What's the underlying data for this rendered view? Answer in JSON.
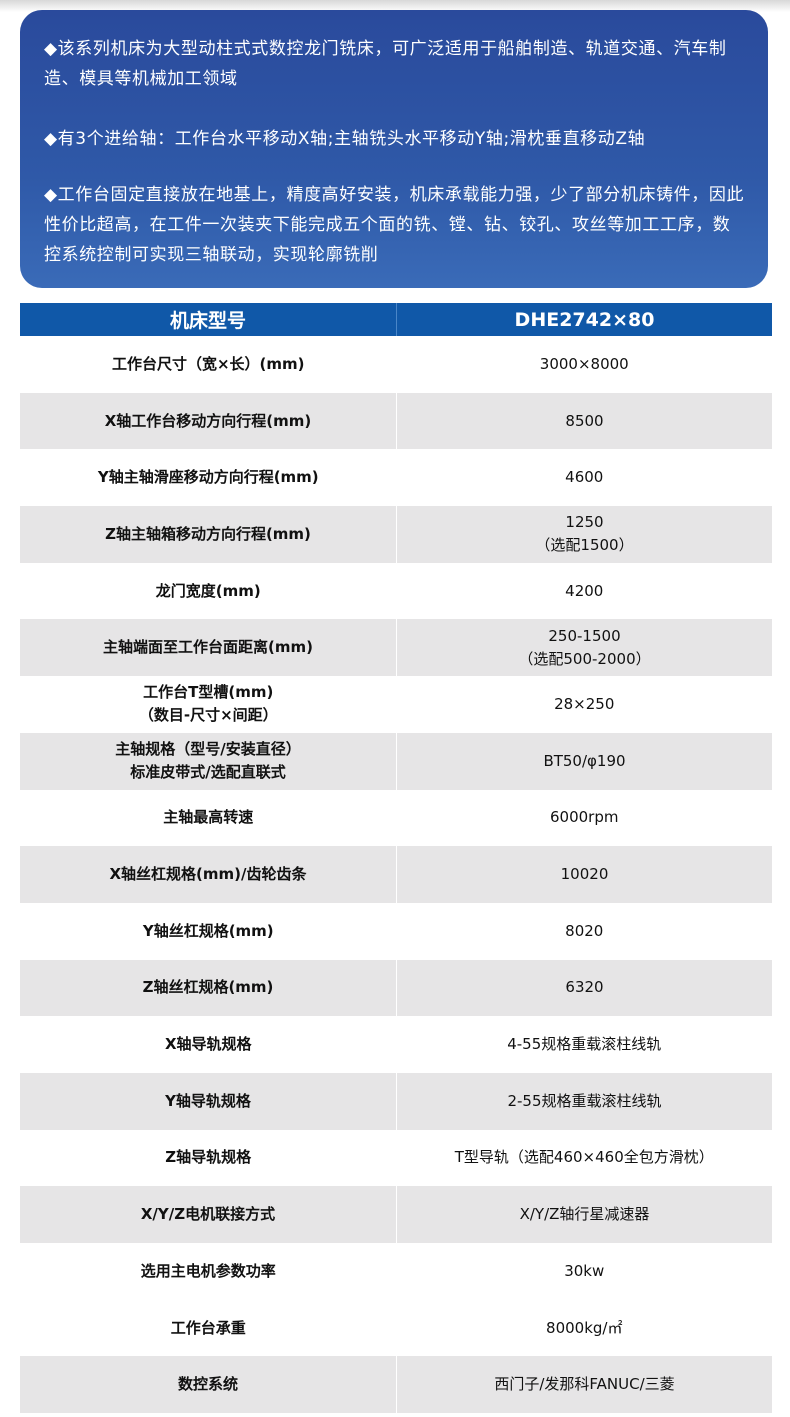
{
  "intro": [
    "◆该系列机床为大型动柱式式数控龙门铣床，可广泛适用于船舶制造、轨道交通、汽车制造、模具等机械加工领域",
    "◆有3个进给轴：工作台水平移动X轴;主轴铣头水平移动Y轴;滑枕垂直移动Z轴",
    "◆工作台固定直接放在地基上，精度高好安装，机床承载能力强，少了部分机床铸件，因此性价比超高，在工件一次装夹下能完成五个面的铣、镗、钻、铰孔、攻丝等加工工序，数控系统控制可实现三轴联动，实现轮廓铣削"
  ],
  "table": {
    "header": [
      "机床型号",
      "DHE2742×80"
    ],
    "rows": [
      {
        "k": "工作台尺寸（宽×长）(mm)",
        "v": "3000×8000",
        "g": false
      },
      {
        "k": "X轴工作台移动方向行程(mm)",
        "v": "8500",
        "g": true
      },
      {
        "k": "Y轴主轴滑座移动方向行程(mm)",
        "v": "4600",
        "g": false
      },
      {
        "k": "Z轴主轴箱移动方向行程(mm)",
        "v": "1250\n（选配1500）",
        "g": true
      },
      {
        "k": "龙门宽度(mm)",
        "v": "4200",
        "g": false
      },
      {
        "k": "主轴端面至工作台面距离(mm)",
        "v": "250-1500\n（选配500-2000）",
        "g": true
      },
      {
        "k": "工作台T型槽(mm)\n（数目-尺寸×间距）",
        "v": "28×250",
        "g": false
      },
      {
        "k": "主轴规格（型号/安装直径）\n标准皮带式/选配直联式",
        "v": "BT50/φ190",
        "g": true
      },
      {
        "k": "主轴最高转速",
        "v": "6000rpm",
        "g": false
      },
      {
        "k": "X轴丝杠规格(mm)/齿轮齿条",
        "v": "10020",
        "g": true
      },
      {
        "k": "Y轴丝杠规格(mm)",
        "v": "8020",
        "g": false
      },
      {
        "k": "Z轴丝杠规格(mm)",
        "v": "6320",
        "g": true
      },
      {
        "k": "X轴导轨规格",
        "v": "4-55规格重载滚柱线轨",
        "g": false
      },
      {
        "k": "Y轴导轨规格",
        "v": "2-55规格重载滚柱线轨",
        "g": true
      },
      {
        "k": "Z轴导轨规格",
        "v": "T型导轨（选配460×460全包方滑枕）",
        "g": false
      },
      {
        "k": "X/Y/Z电机联接方式",
        "v": "X/Y/Z轴行星减速器",
        "g": true
      },
      {
        "k": "选用主电机参数功率",
        "v": "30kw",
        "g": false
      },
      {
        "k": "工作台承重",
        "v": "8000kg/㎡",
        "g": false
      },
      {
        "k": "数控系统",
        "v": "西门子/发那科FANUC/三菱",
        "g": true
      }
    ]
  }
}
